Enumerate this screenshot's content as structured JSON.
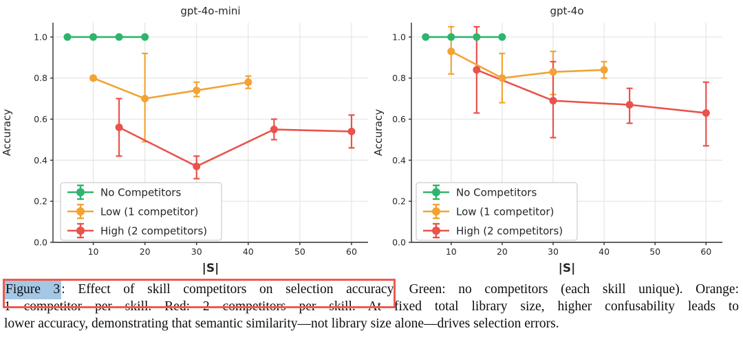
{
  "colors": {
    "green": "#2db56d",
    "orange": "#f2a334",
    "red": "#e8534b",
    "grid": "#e4e4e4",
    "axis": "#2e2e2e",
    "tick_text": "#262626",
    "legend_border": "#cccccc",
    "annotation_box_red": "#ee5a4f",
    "highlight_blue": "#a4c7e4"
  },
  "chart_data": [
    {
      "type": "line",
      "title": "gpt-4o-mini",
      "xlabel": "|S|",
      "ylabel": "Accuracy",
      "xlim": [
        2.2,
        63.2
      ],
      "ylim": [
        0,
        1.07
      ],
      "xticks": [
        10,
        20,
        30,
        40,
        50,
        60
      ],
      "yticks": [
        0.0,
        0.2,
        0.4,
        0.6,
        0.8,
        1.0
      ],
      "grid": true,
      "legend_position": "lower left",
      "series": [
        {
          "name": "No Competitors",
          "color": "#2db56d",
          "points": [
            {
              "x": 5,
              "y": 1.0
            },
            {
              "x": 10,
              "y": 1.0
            },
            {
              "x": 15,
              "y": 1.0
            },
            {
              "x": 20,
              "y": 1.0
            }
          ]
        },
        {
          "name": "Low (1 competitor)",
          "color": "#f2a334",
          "points": [
            {
              "x": 10,
              "y": 0.8
            },
            {
              "x": 20,
              "y": 0.7,
              "err": [
                0.49,
                0.92
              ]
            },
            {
              "x": 30,
              "y": 0.74,
              "err": [
                0.71,
                0.78
              ]
            },
            {
              "x": 40,
              "y": 0.78,
              "err": [
                0.75,
                0.81
              ]
            }
          ]
        },
        {
          "name": "High (2 competitors)",
          "color": "#e8534b",
          "points": [
            {
              "x": 15,
              "y": 0.56,
              "err": [
                0.42,
                0.7
              ]
            },
            {
              "x": 30,
              "y": 0.37,
              "err": [
                0.31,
                0.42
              ]
            },
            {
              "x": 45,
              "y": 0.55,
              "err": [
                0.5,
                0.6
              ]
            },
            {
              "x": 60,
              "y": 0.54,
              "err": [
                0.46,
                0.62
              ]
            }
          ]
        }
      ]
    },
    {
      "type": "line",
      "title": "gpt-4o",
      "xlabel": "|S|",
      "ylabel": "Accuracy",
      "xlim": [
        2.2,
        63.2
      ],
      "ylim": [
        0,
        1.07
      ],
      "xticks": [
        10,
        20,
        30,
        40,
        50,
        60
      ],
      "yticks": [
        0.0,
        0.2,
        0.4,
        0.6,
        0.8,
        1.0
      ],
      "grid": true,
      "legend_position": "lower left",
      "series": [
        {
          "name": "No Competitors",
          "color": "#2db56d",
          "points": [
            {
              "x": 5,
              "y": 1.0
            },
            {
              "x": 10,
              "y": 1.0
            },
            {
              "x": 15,
              "y": 1.0
            },
            {
              "x": 20,
              "y": 1.0
            }
          ]
        },
        {
          "name": "Low (1 competitor)",
          "color": "#f2a334",
          "points": [
            {
              "x": 10,
              "y": 0.93,
              "err": [
                0.82,
                1.05
              ]
            },
            {
              "x": 20,
              "y": 0.8,
              "err": [
                0.68,
                0.92
              ]
            },
            {
              "x": 30,
              "y": 0.83,
              "err": [
                0.72,
                0.93
              ]
            },
            {
              "x": 40,
              "y": 0.84,
              "err": [
                0.8,
                0.88
              ]
            }
          ]
        },
        {
          "name": "High (2 competitors)",
          "color": "#e8534b",
          "points": [
            {
              "x": 15,
              "y": 0.84,
              "err": [
                0.63,
                1.05
              ]
            },
            {
              "x": 30,
              "y": 0.69,
              "err": [
                0.51,
                0.88
              ]
            },
            {
              "x": 45,
              "y": 0.67,
              "err": [
                0.58,
                0.75
              ]
            },
            {
              "x": 60,
              "y": 0.63,
              "err": [
                0.47,
                0.78
              ]
            }
          ]
        }
      ]
    }
  ],
  "caption": {
    "figure_label": "Figure 3",
    "boxed_rest": ": Effect of skill competitors on selection accuracy.",
    "line1_rest": " Green: no competitors (each skill unique). Orange:",
    "line2": "1 competitor per skill. Red: 2 competitors per skill. At fixed total library size, higher confusability leads to",
    "line3": "lower accuracy, demonstrating that semantic similarity—not library size alone—drives selection errors."
  },
  "annotation": {
    "highlighted_text": "Figure 3",
    "boxed_text": "Figure 3: Effect of skill competitors on selection accuracy."
  }
}
